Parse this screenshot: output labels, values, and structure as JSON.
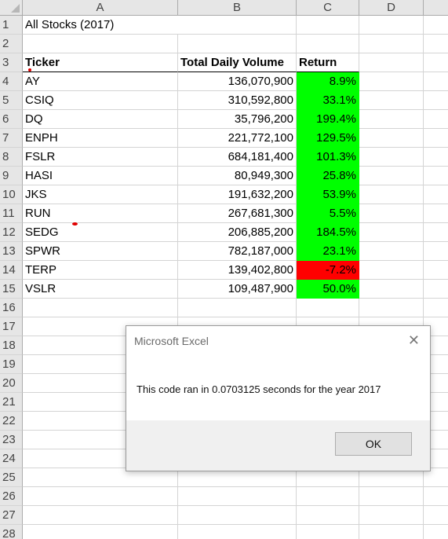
{
  "columns": [
    "A",
    "B",
    "C",
    "D"
  ],
  "rows": [
    "1",
    "2",
    "3",
    "4",
    "5",
    "6",
    "7",
    "8",
    "9",
    "10",
    "11",
    "12",
    "13",
    "14",
    "15",
    "16",
    "17",
    "18",
    "19",
    "20",
    "21",
    "22",
    "23",
    "24",
    "25",
    "26",
    "27",
    "28"
  ],
  "sheet": {
    "title": "All Stocks (2017)",
    "headers": {
      "ticker": "Ticker",
      "volume": "Total Daily Volume",
      "return": "Return"
    },
    "stocks": [
      {
        "ticker": "AY",
        "volume": "136,070,900",
        "return": "8.9%",
        "status": "positive"
      },
      {
        "ticker": "CSIQ",
        "volume": "310,592,800",
        "return": "33.1%",
        "status": "positive"
      },
      {
        "ticker": "DQ",
        "volume": "35,796,200",
        "return": "199.4%",
        "status": "positive"
      },
      {
        "ticker": "ENPH",
        "volume": "221,772,100",
        "return": "129.5%",
        "status": "positive"
      },
      {
        "ticker": "FSLR",
        "volume": "684,181,400",
        "return": "101.3%",
        "status": "positive"
      },
      {
        "ticker": "HASI",
        "volume": "80,949,300",
        "return": "25.8%",
        "status": "positive"
      },
      {
        "ticker": "JKS",
        "volume": "191,632,200",
        "return": "53.9%",
        "status": "positive"
      },
      {
        "ticker": "RUN",
        "volume": "267,681,300",
        "return": "5.5%",
        "status": "positive"
      },
      {
        "ticker": "SEDG",
        "volume": "206,885,200",
        "return": "184.5%",
        "status": "positive"
      },
      {
        "ticker": "SPWR",
        "volume": "782,187,000",
        "return": "23.1%",
        "status": "positive"
      },
      {
        "ticker": "TERP",
        "volume": "139,402,800",
        "return": "-7.2%",
        "status": "negative"
      },
      {
        "ticker": "VSLR",
        "volume": "109,487,900",
        "return": "50.0%",
        "status": "positive"
      }
    ]
  },
  "colors": {
    "positive": "#00ff00",
    "negative": "#ff0000",
    "header_bg": "#e6e6e6",
    "gridline": "#d4d4d4"
  },
  "dialog": {
    "title": "Microsoft Excel",
    "close_icon": "close-icon",
    "message": "This code ran in 0.0703125 seconds for the year 2017",
    "ok_label": "OK"
  }
}
